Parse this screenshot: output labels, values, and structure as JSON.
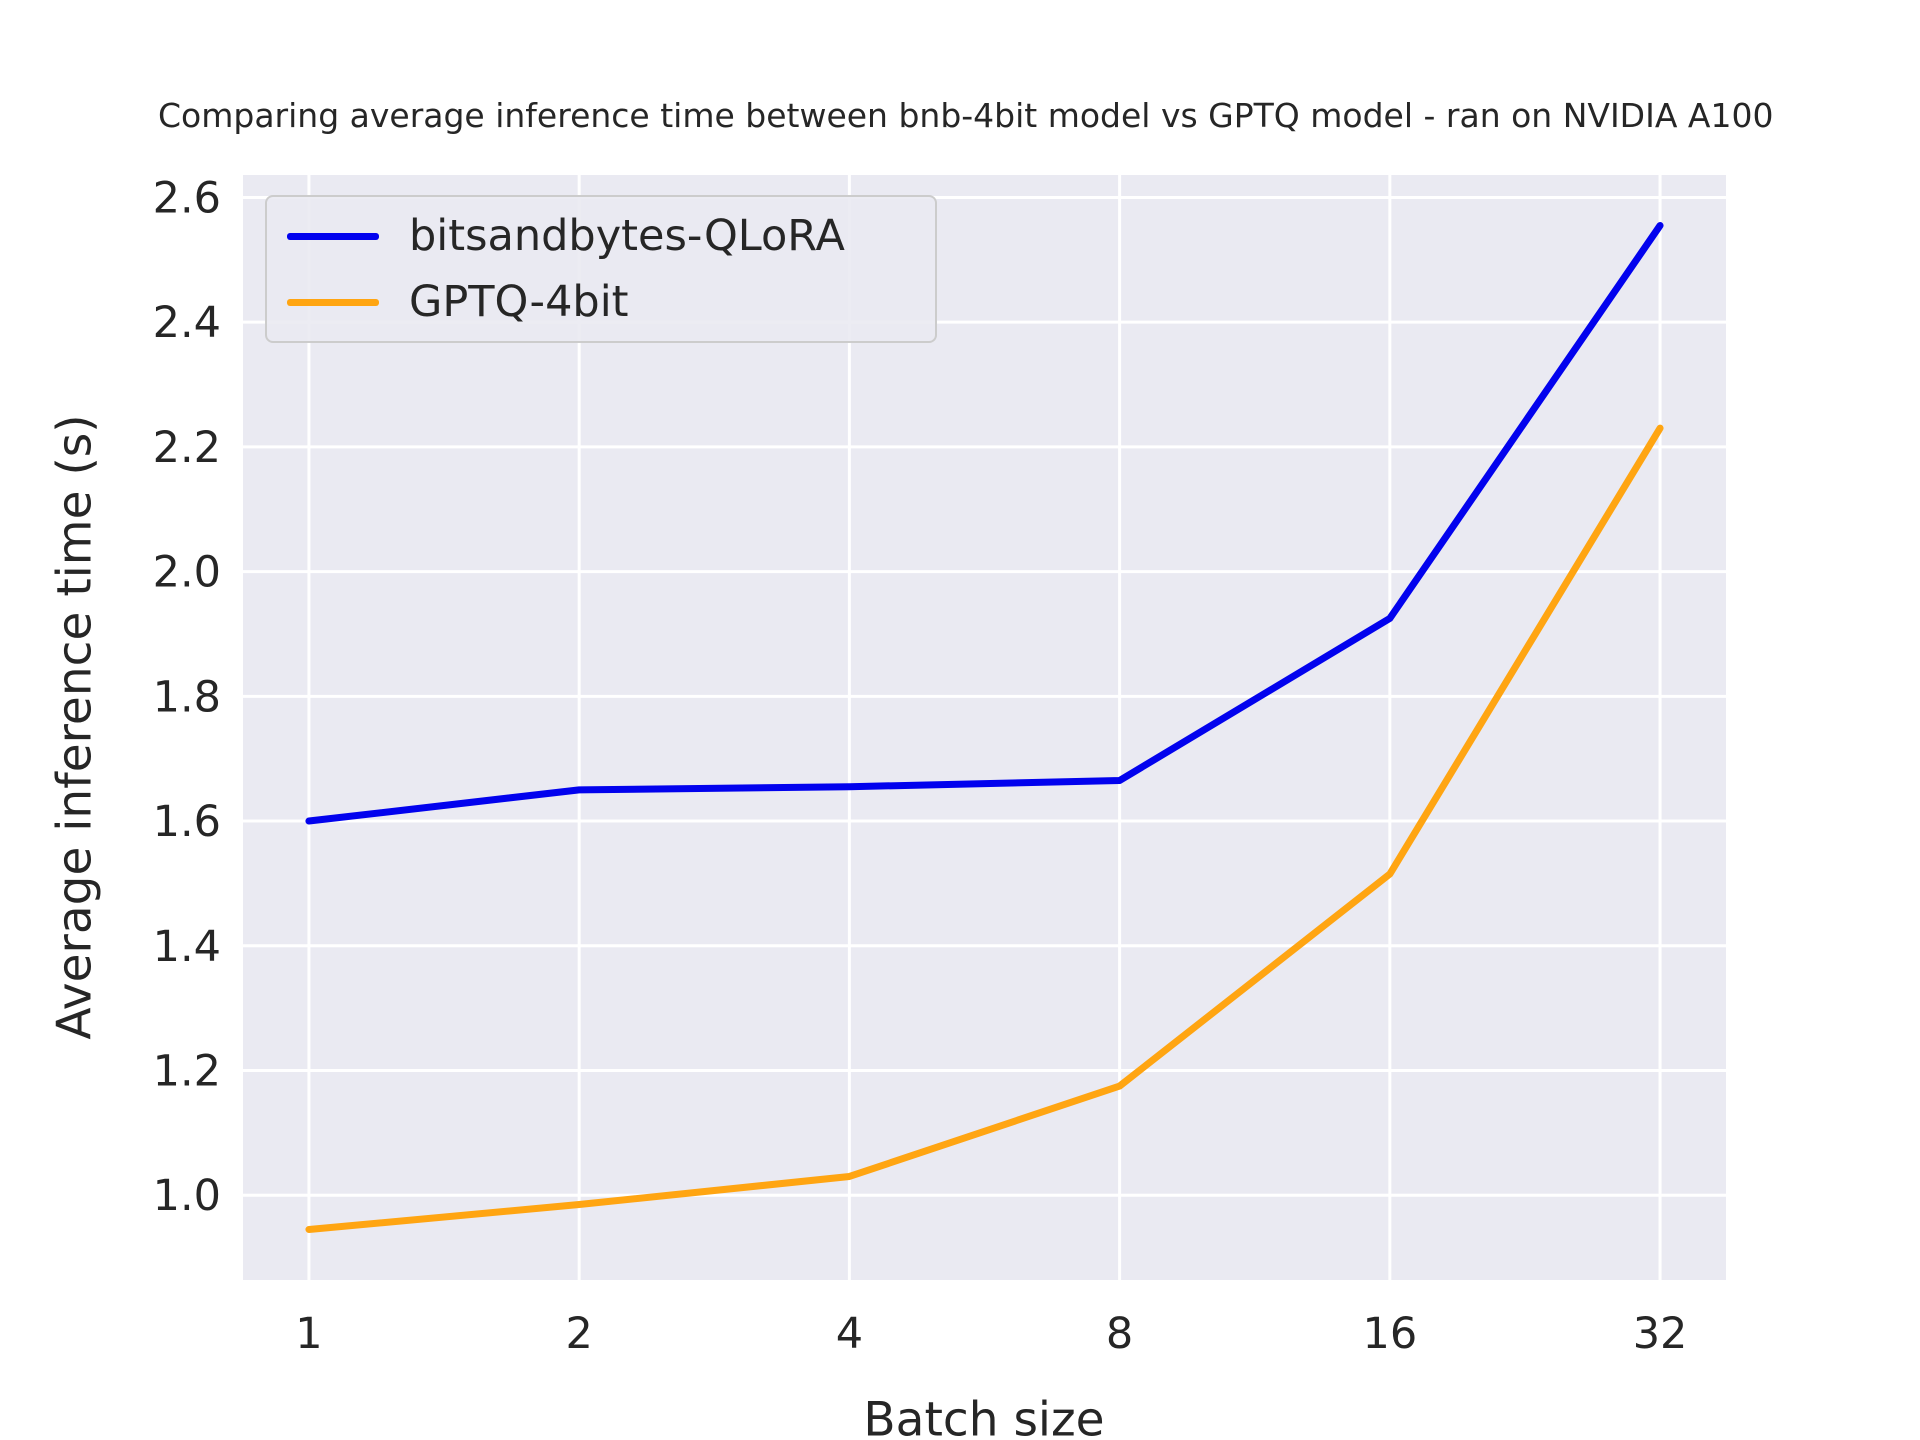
{
  "chart_data": {
    "type": "line",
    "title": "Comparing average inference time between bnb-4bit model vs GPTQ model - ran on NVIDIA A100",
    "xlabel": "Batch size",
    "ylabel": "Average inference time (s)",
    "x_scale": "log2",
    "x": [
      1,
      2,
      4,
      8,
      16,
      32
    ],
    "xtick_labels": [
      "1",
      "2",
      "4",
      "8",
      "16",
      "32"
    ],
    "yticks": [
      1.0,
      1.2,
      1.4,
      1.6,
      1.8,
      2.0,
      2.2,
      2.4,
      2.6
    ],
    "ytick_labels": [
      "1.0",
      "1.2",
      "1.4",
      "1.6",
      "1.8",
      "2.0",
      "2.2",
      "2.4",
      "2.6"
    ],
    "ylim": [
      0.864,
      2.636
    ],
    "xlim_log2": [
      -0.244,
      5.244
    ],
    "grid": true,
    "legend_position": "upper left",
    "series": [
      {
        "name": "bitsandbytes-QLoRA",
        "color": "#0202ee",
        "values": [
          1.6,
          1.65,
          1.655,
          1.665,
          1.925,
          2.555
        ]
      },
      {
        "name": "GPTQ-4bit",
        "color": "#ffa512",
        "values": [
          0.945,
          0.985,
          1.03,
          1.175,
          1.515,
          2.23
        ]
      }
    ],
    "colors": {
      "plot_background": "#eaeaf2",
      "grid": "#ffffff",
      "text": "#262626",
      "legend_border": "#cccccc"
    }
  }
}
